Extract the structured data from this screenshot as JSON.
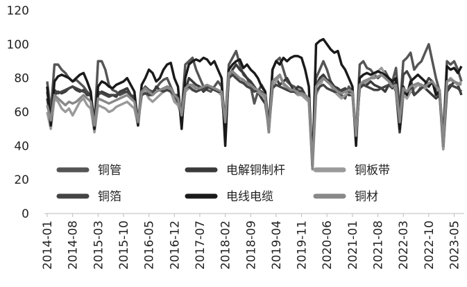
{
  "chart_data": {
    "type": "line",
    "categories": [
      "2014-01",
      null,
      null,
      null,
      null,
      null,
      null,
      "2014-08",
      null,
      null,
      null,
      null,
      null,
      null,
      "2015-03",
      null,
      null,
      null,
      null,
      null,
      null,
      "2015-10",
      null,
      null,
      null,
      null,
      null,
      null,
      "2016-05",
      null,
      null,
      null,
      null,
      null,
      null,
      "2016-12",
      null,
      null,
      null,
      null,
      null,
      null,
      "2017-07",
      null,
      null,
      null,
      null,
      null,
      null,
      "2018-02",
      null,
      null,
      null,
      null,
      null,
      null,
      "2018-09",
      null,
      null,
      null,
      null,
      null,
      null,
      "2019-04",
      null,
      null,
      null,
      null,
      null,
      null,
      "2019-11",
      null,
      null,
      null,
      null,
      null,
      null,
      "2020-06",
      null,
      null,
      null,
      null,
      null,
      null,
      "2021-01",
      null,
      null,
      null,
      null,
      null,
      null,
      "2021-08",
      null,
      null,
      null,
      null,
      null,
      null,
      "2022-03",
      null,
      null,
      null,
      null,
      null,
      null,
      "2022-10",
      null,
      null,
      null,
      null,
      null,
      null,
      "2023-05",
      null,
      null
    ],
    "ylim": [
      0,
      120
    ],
    "yticks": [
      0,
      20,
      40,
      60,
      80,
      100,
      120
    ],
    "grid": false,
    "legend": "lower center",
    "series": [
      {
        "name": "铜管",
        "color": "#555555",
        "values": [
          78,
          60,
          88,
          88,
          85,
          83,
          80,
          78,
          79,
          77,
          75,
          72,
          70,
          52,
          90,
          90,
          85,
          76,
          73,
          72,
          70,
          71,
          72,
          70,
          68,
          55,
          72,
          75,
          73,
          72,
          74,
          77,
          79,
          80,
          75,
          70,
          65,
          60,
          88,
          90,
          92,
          85,
          80,
          75,
          73,
          72,
          75,
          78,
          75,
          55,
          88,
          92,
          96,
          88,
          82,
          80,
          75,
          65,
          72,
          76,
          72,
          52,
          85,
          90,
          92,
          85,
          78,
          76,
          75,
          73,
          72,
          70,
          68,
          28,
          80,
          85,
          90,
          85,
          78,
          74,
          72,
          70,
          68,
          75,
          72,
          45,
          88,
          90,
          86,
          85,
          82,
          80,
          82,
          84,
          80,
          78,
          86,
          60,
          90,
          92,
          95,
          85,
          88,
          90,
          95,
          100,
          90,
          80,
          72,
          45,
          90,
          88,
          90,
          85,
          78
        ]
      },
      {
        "name": "电解铜制杆",
        "color": "#3a3a3a",
        "values": [
          68,
          55,
          70,
          72,
          71,
          72,
          74,
          75,
          73,
          72,
          73,
          70,
          70,
          52,
          70,
          72,
          71,
          70,
          70,
          69,
          72,
          73,
          74,
          70,
          68,
          55,
          70,
          72,
          70,
          70,
          75,
          73,
          72,
          75,
          74,
          70,
          68,
          55,
          72,
          80,
          78,
          76,
          75,
          72,
          74,
          75,
          74,
          72,
          70,
          50,
          80,
          85,
          88,
          85,
          83,
          80,
          78,
          75,
          72,
          68,
          65,
          50,
          78,
          80,
          76,
          78,
          80,
          76,
          72,
          75,
          74,
          70,
          68,
          30,
          75,
          80,
          82,
          79,
          78,
          75,
          74,
          72,
          73,
          70,
          70,
          45,
          75,
          78,
          76,
          78,
          76,
          75,
          74,
          72,
          76,
          78,
          72,
          48,
          70,
          72,
          74,
          70,
          72,
          75,
          74,
          72,
          70,
          68,
          70,
          38,
          72,
          75,
          78,
          76,
          70
        ]
      },
      {
        "name": "铜板带",
        "color": "#9a9a9a",
        "values": [
          60,
          50,
          68,
          66,
          62,
          60,
          62,
          58,
          62,
          66,
          68,
          64,
          62,
          48,
          64,
          63,
          62,
          60,
          61,
          63,
          64,
          65,
          66,
          64,
          62,
          52,
          70,
          72,
          68,
          66,
          68,
          70,
          72,
          74,
          72,
          66,
          64,
          58,
          72,
          74,
          75,
          72,
          73,
          74,
          75,
          74,
          73,
          72,
          70,
          55,
          82,
          82,
          80,
          78,
          78,
          76,
          74,
          73,
          72,
          70,
          68,
          48,
          75,
          78,
          82,
          76,
          74,
          72,
          72,
          70,
          70,
          68,
          66,
          26,
          70,
          75,
          80,
          78,
          76,
          72,
          70,
          68,
          70,
          72,
          70,
          48,
          74,
          76,
          78,
          80,
          82,
          84,
          86,
          82,
          78,
          74,
          74,
          52,
          70,
          68,
          72,
          74,
          76,
          75,
          74,
          76,
          78,
          74,
          72,
          38,
          78,
          80,
          78,
          76,
          78
        ]
      },
      {
        "name": "铜箔",
        "color": "#444444",
        "values": [
          72,
          58,
          73,
          71,
          72,
          73,
          74,
          75,
          74,
          73,
          72,
          71,
          70,
          55,
          72,
          71,
          70,
          69,
          70,
          70,
          71,
          72,
          72,
          70,
          69,
          56,
          70,
          71,
          70,
          71,
          72,
          73,
          72,
          73,
          72,
          70,
          70,
          58,
          74,
          75,
          73,
          72,
          73,
          74,
          75,
          74,
          73,
          72,
          72,
          55,
          80,
          82,
          80,
          78,
          77,
          75,
          74,
          72,
          73,
          72,
          70,
          50,
          74,
          76,
          75,
          74,
          73,
          72,
          72,
          71,
          72,
          70,
          68,
          30,
          72,
          75,
          76,
          74,
          73,
          72,
          72,
          73,
          74,
          72,
          72,
          48,
          74,
          76,
          75,
          74,
          73,
          73,
          74,
          75,
          76,
          74,
          78,
          58,
          82,
          84,
          80,
          70,
          72,
          74,
          76,
          80,
          78,
          72,
          70,
          42,
          74,
          76,
          75,
          74,
          72
        ]
      },
      {
        "name": "电线电缆",
        "color": "#1a1a1a",
        "values": [
          75,
          52,
          78,
          81,
          82,
          81,
          80,
          78,
          80,
          82,
          83,
          78,
          72,
          50,
          75,
          78,
          77,
          75,
          74,
          76,
          77,
          78,
          80,
          76,
          72,
          52,
          76,
          80,
          85,
          83,
          78,
          80,
          85,
          88,
          89,
          80,
          75,
          50,
          80,
          88,
          90,
          91,
          90,
          92,
          91,
          88,
          90,
          85,
          80,
          40,
          85,
          88,
          90,
          91,
          86,
          88,
          85,
          83,
          80,
          75,
          72,
          48,
          85,
          90,
          88,
          92,
          90,
          92,
          93,
          93,
          92,
          85,
          75,
          27,
          100,
          102,
          103,
          100,
          97,
          95,
          96,
          88,
          85,
          80,
          75,
          40,
          80,
          82,
          83,
          82,
          83,
          84,
          83,
          82,
          80,
          78,
          80,
          50,
          75,
          70,
          78,
          80,
          82,
          80,
          78,
          75,
          78,
          70,
          72,
          40,
          87,
          85,
          86,
          83,
          87
        ]
      },
      {
        "name": "铜材",
        "color": "#888888",
        "values": [
          64,
          55,
          70,
          68,
          66,
          64,
          66,
          65,
          66,
          68,
          70,
          68,
          66,
          52,
          68,
          67,
          66,
          65,
          66,
          67,
          68,
          69,
          70,
          68,
          66,
          54,
          72,
          74,
          72,
          70,
          72,
          73,
          74,
          75,
          74,
          70,
          68,
          58,
          74,
          76,
          76,
          74,
          74,
          75,
          76,
          75,
          74,
          73,
          72,
          54,
          83,
          84,
          82,
          80,
          79,
          77,
          76,
          74,
          73,
          71,
          70,
          48,
          78,
          80,
          82,
          77,
          75,
          73,
          73,
          71,
          71,
          70,
          68,
          27,
          75,
          78,
          80,
          78,
          76,
          74,
          72,
          71,
          72,
          73,
          72,
          46,
          76,
          78,
          79,
          80,
          80,
          81,
          82,
          80,
          78,
          75,
          76,
          54,
          74,
          72,
          75,
          76,
          77,
          76,
          75,
          77,
          78,
          75,
          73,
          40,
          78,
          79,
          78,
          77,
          76
        ]
      }
    ]
  }
}
